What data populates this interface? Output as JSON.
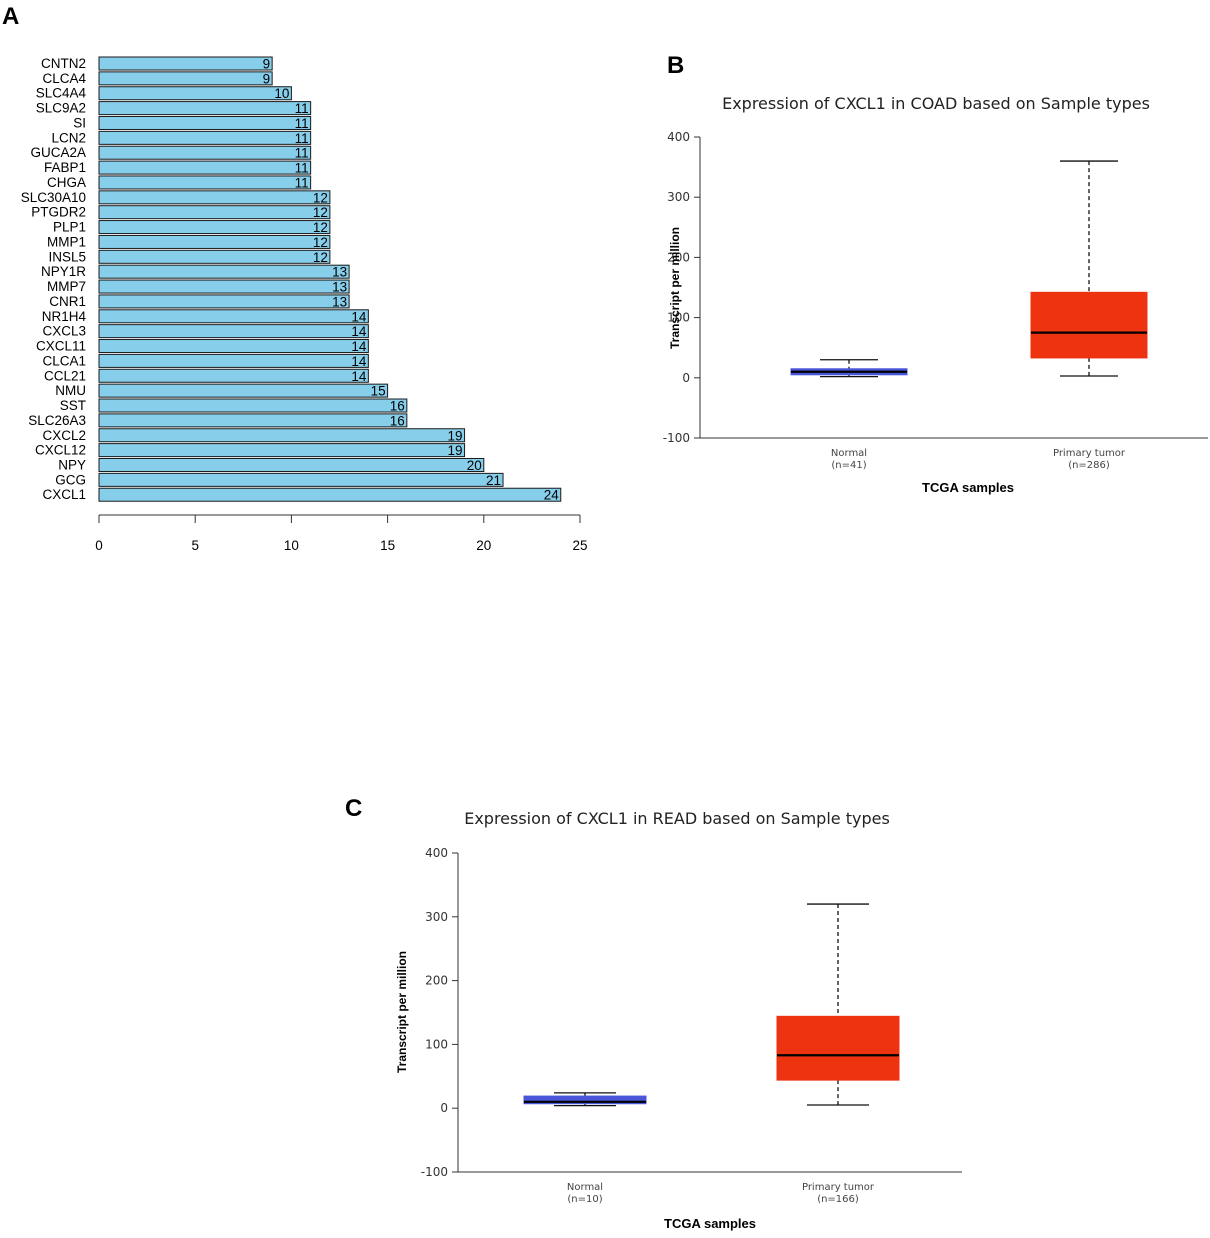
{
  "panels": {
    "a": "A",
    "b": "B",
    "c": "C"
  },
  "chart_data": [
    {
      "type": "bar",
      "orientation": "horizontal",
      "panel": "A",
      "categories": [
        "CNTN2",
        "CLCA4",
        "SLC4A4",
        "SLC9A2",
        "SI",
        "LCN2",
        "GUCA2A",
        "FABP1",
        "CHGA",
        "SLC30A10",
        "PTGDR2",
        "PLP1",
        "MMP1",
        "INSL5",
        "NPY1R",
        "MMP7",
        "CNR1",
        "NR1H4",
        "CXCL3",
        "CXCL11",
        "CLCA1",
        "CCL21",
        "NMU",
        "SST",
        "SLC26A3",
        "CXCL2",
        "CXCL12",
        "NPY",
        "GCG",
        "CXCL1"
      ],
      "values": [
        9,
        9,
        10,
        11,
        11,
        11,
        11,
        11,
        11,
        12,
        12,
        12,
        12,
        12,
        13,
        13,
        13,
        14,
        14,
        14,
        14,
        14,
        15,
        16,
        16,
        19,
        19,
        20,
        21,
        24
      ],
      "xlim": [
        0,
        25
      ],
      "xticks": [
        0,
        5,
        10,
        15,
        20,
        25
      ],
      "bar_color": "#87ceeb",
      "title": "",
      "xlabel": "",
      "ylabel": ""
    },
    {
      "type": "boxplot",
      "panel": "B",
      "title": "Expression of CXCL1 in COAD based on Sample types",
      "xlabel": "TCGA samples",
      "ylabel": "Transcript per million",
      "ylim": [
        -100,
        400
      ],
      "yticks": [
        -100,
        0,
        100,
        200,
        300,
        400
      ],
      "groups": [
        {
          "name": "Normal",
          "n": "(n=41)",
          "min": 2,
          "q1": 5,
          "median": 10,
          "q3": 15,
          "max": 30,
          "color": "#4a56d9"
        },
        {
          "name": "Primary tumor",
          "n": "(n=286)",
          "min": 3,
          "q1": 33,
          "median": 75,
          "q3": 142,
          "max": 360,
          "color": "#ee3311"
        }
      ]
    },
    {
      "type": "boxplot",
      "panel": "C",
      "title": "Expression of CXCL1 in READ based on Sample types",
      "xlabel": "TCGA samples",
      "ylabel": "Transcript per million",
      "ylim": [
        -100,
        400
      ],
      "yticks": [
        -100,
        0,
        100,
        200,
        300,
        400
      ],
      "groups": [
        {
          "name": "Normal",
          "n": "(n=10)",
          "min": 4,
          "q1": 7,
          "median": 10,
          "q3": 19,
          "max": 24,
          "color": "#4a56d9"
        },
        {
          "name": "Primary tumor",
          "n": "(n=166)",
          "min": 5,
          "q1": 44,
          "median": 83,
          "q3": 144,
          "max": 320,
          "color": "#ee3311"
        }
      ]
    }
  ]
}
